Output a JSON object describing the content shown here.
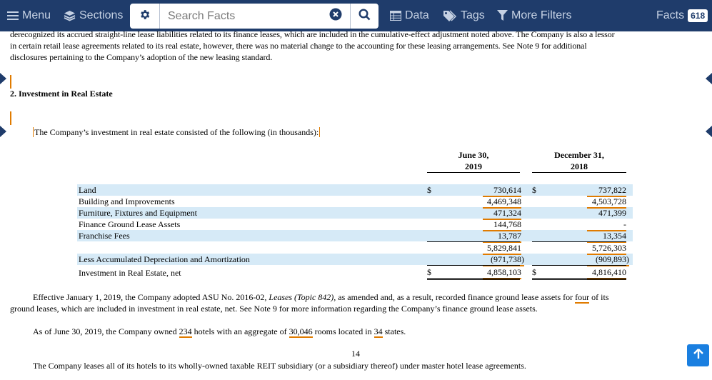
{
  "toolbar": {
    "menu_label": "Menu",
    "sections_label": "Sections",
    "search_placeholder": "Search Facts",
    "data_label": "Data",
    "tags_label": "Tags",
    "filters_label": "More Filters",
    "facts_label": "Facts",
    "facts_count": "618"
  },
  "doc": {
    "top_para_line1": "derecognized its accrued straight-line lease liabilities related to its finance leases, which are included in the cumulative-effect adjustment noted above. The Company is also a lessor",
    "top_para_line2": "in certain retail lease agreements related to its real estate, however, there was no material change to the accounting for these leasing arrangements. See Note 9 for additional",
    "top_para_line3": "disclosures pertaining to the Company’s adoption of the new leasing standard.",
    "section_heading": "2. Investment in Real Estate",
    "intro": "The Company’s investment in real estate consisted of the following (in thousands):",
    "col1_head_line1": "June 30,",
    "col1_head_line2": "2019",
    "col2_head_line1": "December 31,",
    "col2_head_line2": "2018",
    "currency": "$",
    "rows": [
      {
        "label": "Land",
        "v1": "730,614",
        "v2": "737,822"
      },
      {
        "label": "Building and Improvements",
        "v1": "4,469,348",
        "v2": "4,503,728"
      },
      {
        "label": "Furniture, Fixtures and Equipment",
        "v1": "471,324",
        "v2": "471,399"
      },
      {
        "label": "Finance Ground Lease Assets",
        "v1": "144,768",
        "v2": "-"
      },
      {
        "label": "Franchise Fees",
        "v1": "13,787",
        "v2": "13,354"
      },
      {
        "label": "",
        "v1": "5,829,841",
        "v2": "5,726,303"
      },
      {
        "label": "Less Accumulated Depreciation and Amortization",
        "v1": "(971,738)",
        "v2": "(909,893)"
      },
      {
        "label": "Investment in Real Estate, net",
        "v1": "4,858,103",
        "v2": "4,816,410"
      }
    ],
    "p2_a": "Effective January 1, 2019, the Company adopted ASU No. 2016-02, ",
    "p2_italic": "Leases (Topic 842),",
    "p2_b": " as amended and, as a result, recorded finance ground lease assets for ",
    "p2_fact": "four",
    "p2_c": " of its",
    "p2_line2": "ground leases, which are included in investment in real estate, net. See Note 9 for more information regarding the Company’s finance ground lease assets.",
    "p3_a": "As of June 30, 2019, the Company owned ",
    "p3_hotels": "234",
    "p3_b": " hotels with an aggregate of ",
    "p3_rooms": "30,046",
    "p3_c": " rooms located in ",
    "p3_states": "34",
    "p3_d": " states.",
    "page_number": "14",
    "p4": "The Company leases all of its hotels to its wholly-owned taxable REIT subsidiary (or a subsidiary thereof) under master hotel lease agreements."
  }
}
